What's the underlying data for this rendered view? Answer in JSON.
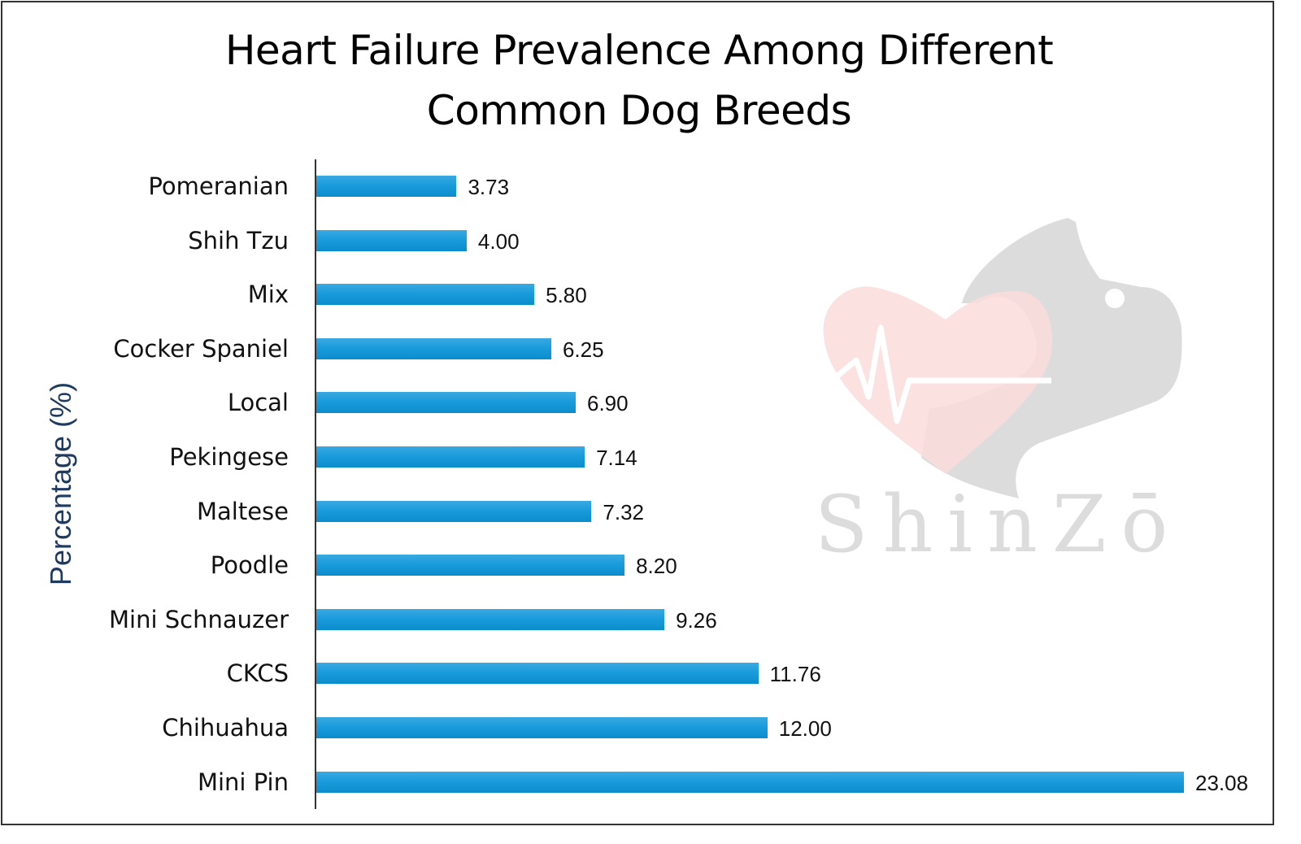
{
  "chart": {
    "title_line1": "Heart Failure Prevalence Among Different",
    "title_line2": "Common Dog Breeds",
    "ylabel": "Percentage (%)",
    "watermark_text": "ShinZō",
    "bar_color": "#1a9cdc",
    "categories": [
      "Pomeranian",
      "Shih Tzu",
      "Mix",
      "Cocker Spaniel",
      "Local",
      "Pekingese",
      "Maltese",
      "Poodle",
      "Mini Schnauzer",
      "CKCS",
      "Chihuahua",
      "Mini Pin"
    ],
    "value_labels": [
      "3.73",
      "4.00",
      "5.80",
      "6.25",
      "6.90",
      "7.14",
      "7.32",
      "8.20",
      "9.26",
      "11.76",
      "12.00",
      "23.08"
    ]
  },
  "chart_data": {
    "type": "bar",
    "orientation": "horizontal",
    "title": "Heart Failure Prevalence Among Different Common Dog Breeds",
    "xlabel": "",
    "ylabel": "Percentage (%)",
    "categories": [
      "Pomeranian",
      "Shih Tzu",
      "Mix",
      "Cocker Spaniel",
      "Local",
      "Pekingese",
      "Maltese",
      "Poodle",
      "Mini Schnauzer",
      "CKCS",
      "Chihuahua",
      "Mini Pin"
    ],
    "values": [
      3.73,
      4.0,
      5.8,
      6.25,
      6.9,
      7.14,
      7.32,
      8.2,
      9.26,
      11.76,
      12.0,
      23.08
    ],
    "data_labels": true,
    "grid": false,
    "legend": "none",
    "xlim": [
      0,
      23.08
    ],
    "series": [
      {
        "name": "Percentage (%)",
        "color": "#1a9cdc",
        "values": [
          3.73,
          4.0,
          5.8,
          6.25,
          6.9,
          7.14,
          7.32,
          8.2,
          9.26,
          11.76,
          12.0,
          23.08
        ]
      }
    ],
    "annotations": [
      "ShinZō watermark logo (heart with ECG line and dog silhouette)"
    ]
  }
}
